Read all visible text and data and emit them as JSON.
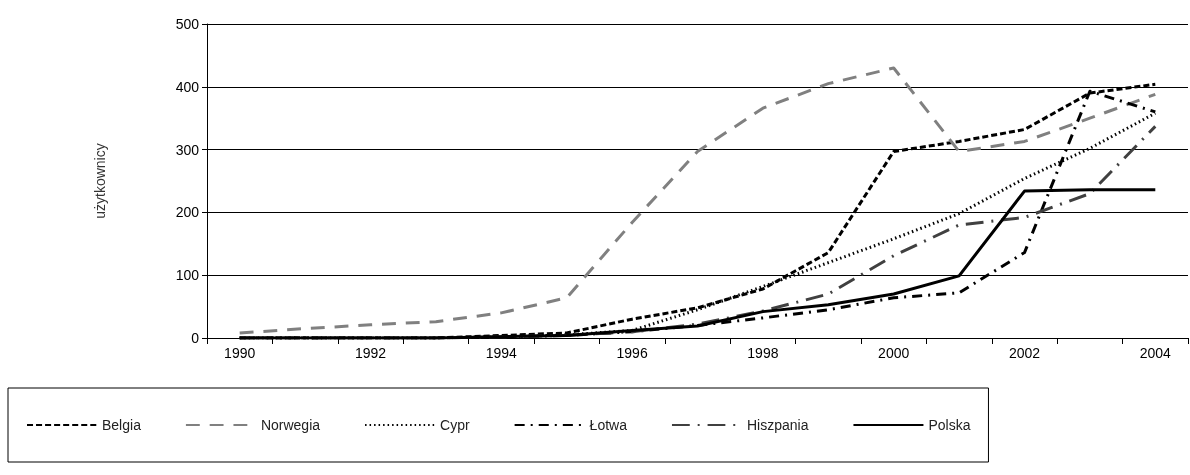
{
  "chart_data": {
    "type": "line",
    "ylabel": "użytkownicy",
    "categories": [
      "1990",
      null,
      "1992",
      null,
      "1994",
      null,
      "1996",
      null,
      "1998",
      null,
      "2000",
      null,
      "2002",
      null,
      "2004"
    ],
    "series": [
      {
        "name": "Belgia",
        "color": "#000000",
        "line_style": "dashed",
        "values": [
          0,
          0,
          0,
          0,
          4,
          8,
          30,
          48,
          78,
          136,
          297,
          313,
          332,
          390,
          404
        ]
      },
      {
        "name": "Norwegia",
        "color": "#808080",
        "line_style": "longdash",
        "values": [
          8,
          15,
          21,
          26,
          40,
          64,
          184,
          297,
          366,
          405,
          430,
          297,
          313,
          350,
          388
        ]
      },
      {
        "name": "Cypr",
        "color": "#000000",
        "line_style": "dotted",
        "values": [
          0,
          0,
          0,
          0,
          2,
          5,
          12,
          45,
          82,
          120,
          158,
          198,
          254,
          302,
          358
        ]
      },
      {
        "name": "Łotwa",
        "color": "#000000",
        "line_style": "dashdot",
        "values": [
          0,
          0,
          0,
          0,
          2,
          4,
          10,
          20,
          32,
          45,
          64,
          72,
          136,
          393,
          360
        ]
      },
      {
        "name": "Hiszpania",
        "color": "#404040",
        "line_style": "longdashdot",
        "values": [
          0,
          0,
          0,
          0,
          2,
          4,
          10,
          22,
          43,
          70,
          131,
          180,
          192,
          230,
          337
        ]
      },
      {
        "name": "Polska",
        "color": "#000000",
        "line_style": "solid",
        "values": [
          0,
          0,
          0,
          0,
          2,
          4,
          12,
          19,
          42,
          53,
          70,
          99,
          234,
          236,
          236
        ]
      }
    ],
    "ylim": [
      0,
      500
    ],
    "yticks": [
      0,
      100,
      200,
      300,
      400,
      500
    ],
    "grid": "y",
    "legend": "bottom",
    "marker": "none"
  }
}
